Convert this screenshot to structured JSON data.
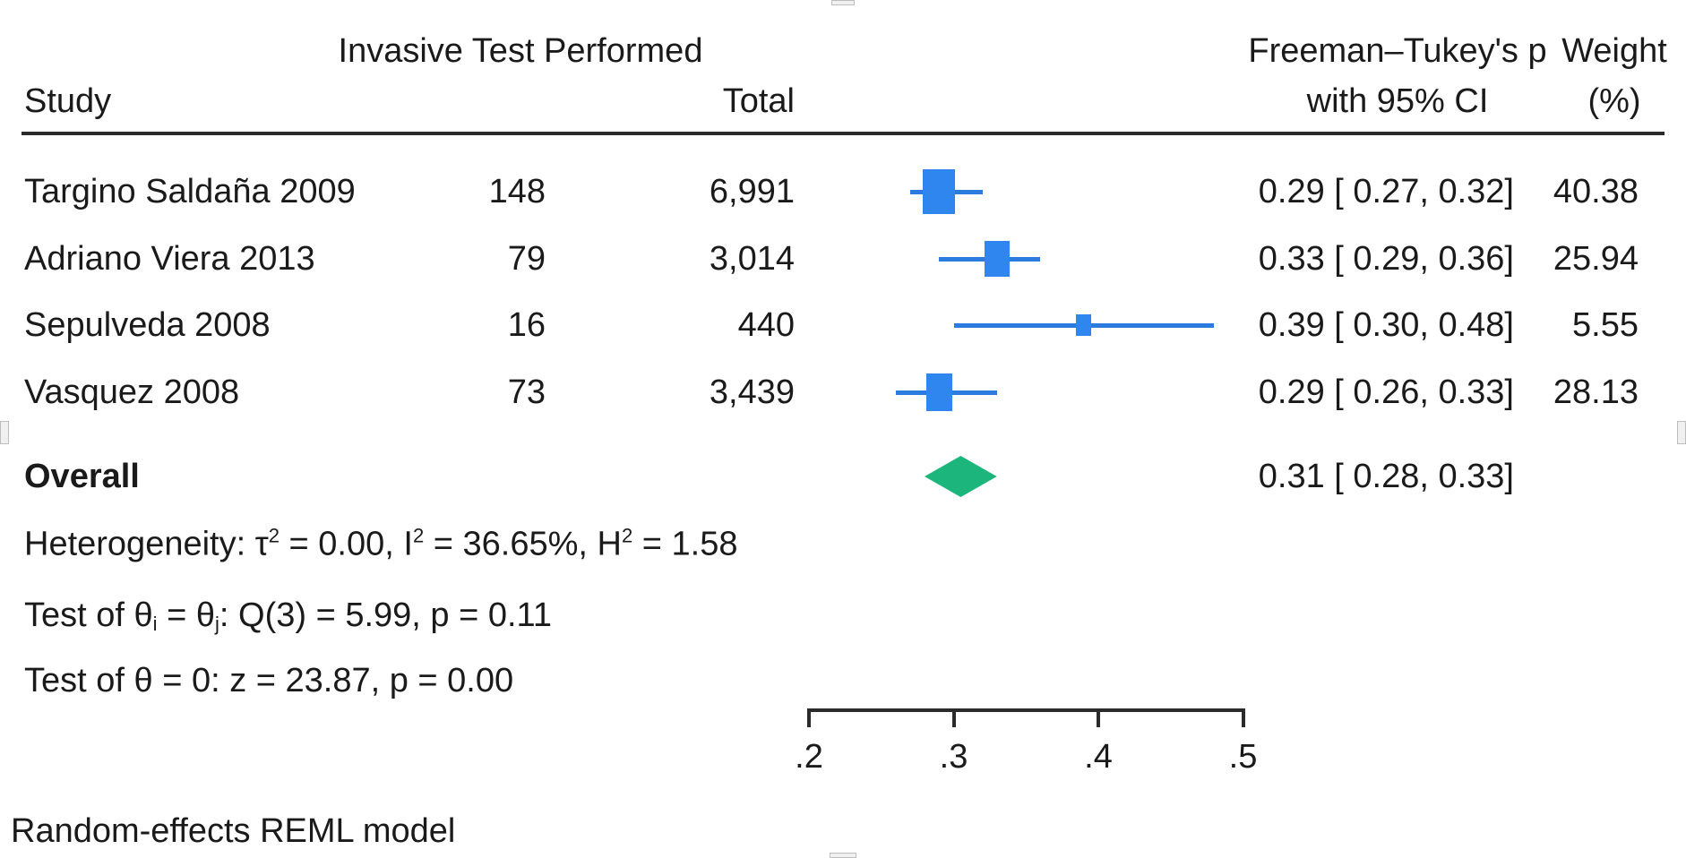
{
  "colors": {
    "marker_blue": "#2E86EE",
    "ci_blue": "#2B7CDE",
    "overall_green": "#1CB57B",
    "rule": "#2B2B2B",
    "text": "#1A1A1A"
  },
  "header": {
    "group_title": "Invasive Test Performed",
    "study": "Study",
    "total": "Total",
    "effect_line1": "Freeman–Tukey's p",
    "effect_line2": "with 95% CI",
    "weight_line1": "Weight",
    "weight_line2": "(%)"
  },
  "rows": [
    {
      "study": "Targino Saldaña 2009",
      "events": "148",
      "total": "6,991",
      "ci": "0.29 [ 0.27, 0.32]",
      "weight": "40.38"
    },
    {
      "study": "Adriano Viera 2013",
      "events": "79",
      "total": "3,014",
      "ci": "0.33 [ 0.29, 0.36]",
      "weight": "25.94"
    },
    {
      "study": "Sepulveda 2008",
      "events": "16",
      "total": "440",
      "ci": "0.39 [ 0.30, 0.48]",
      "weight": "5.55"
    },
    {
      "study": "Vasquez 2008",
      "events": "73",
      "total": "3,439",
      "ci": "0.29 [ 0.26, 0.33]",
      "weight": "28.13"
    }
  ],
  "overall": {
    "label": "Overall",
    "ci": "0.31 [ 0.28, 0.33]"
  },
  "stats": {
    "het_p1": "Heterogeneity: τ",
    "sup2": "2",
    "het_p2": " = 0.00, I",
    "het_p3": " = 36.65%, H",
    "het_p4": " = 1.58",
    "t1_p1": "Test of θ",
    "sub_i": "i",
    "t1_p2": " = θ",
    "sub_j": "j",
    "t1_p3": ": Q(3) = 5.99, p = 0.11",
    "t2": "Test of θ = 0: z = 23.87, p = 0.00"
  },
  "footer": {
    "model": "Random-effects REML model"
  },
  "axis": {
    "tick_labels": [
      ".2",
      ".3",
      ".4",
      ".5"
    ]
  },
  "chart_data": {
    "type": "forest",
    "title": "Invasive Test Performed",
    "effect_label": "Freeman–Tukey's p with 95% CI",
    "model": "Random-effects REML model",
    "xlim": [
      0.2,
      0.5
    ],
    "x_ticks": [
      0.2,
      0.3,
      0.4,
      0.5
    ],
    "studies": [
      {
        "study": "Targino Saldaña 2009",
        "events": 148,
        "total": 6991,
        "est": 0.29,
        "ci_low": 0.27,
        "ci_high": 0.32,
        "weight": 40.38
      },
      {
        "study": "Adriano Viera 2013",
        "events": 79,
        "total": 3014,
        "est": 0.33,
        "ci_low": 0.29,
        "ci_high": 0.36,
        "weight": 25.94
      },
      {
        "study": "Sepulveda 2008",
        "events": 16,
        "total": 440,
        "est": 0.39,
        "ci_low": 0.3,
        "ci_high": 0.48,
        "weight": 5.55
      },
      {
        "study": "Vasquez 2008",
        "events": 73,
        "total": 3439,
        "est": 0.29,
        "ci_low": 0.26,
        "ci_high": 0.33,
        "weight": 28.13
      }
    ],
    "overall": {
      "est": 0.31,
      "ci_low": 0.28,
      "ci_high": 0.33
    },
    "heterogeneity": {
      "tau2": 0.0,
      "I2_pct": 36.65,
      "H2": 1.58
    },
    "test_theta_i_j": {
      "Q_df": 3,
      "Q": 5.99,
      "p": 0.11
    },
    "test_theta_zero": {
      "z": 23.87,
      "p": 0.0
    }
  }
}
